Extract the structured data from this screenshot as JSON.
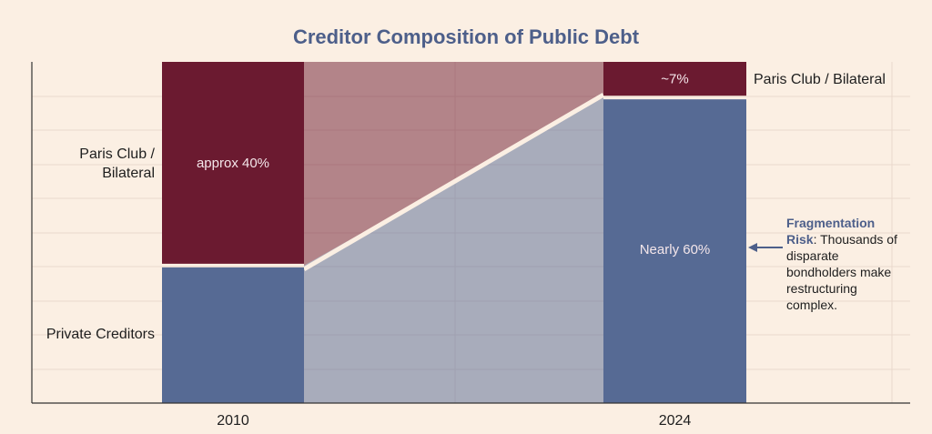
{
  "chart_data": {
    "type": "stacked-bar",
    "title": "Creditor Composition of Public Debt",
    "categories": [
      "2010",
      "2024"
    ],
    "stacking": "percent",
    "series": [
      {
        "name": "Private Creditors",
        "color": "#566a94",
        "values": [
          27,
          60
        ],
        "value_labels": [
          null,
          "Nearly 60%"
        ]
      },
      {
        "name": "Paris Club / Bilateral",
        "color": "#6b1a30",
        "values": [
          40,
          7
        ],
        "value_labels": [
          "approx 40%",
          "~7%"
        ]
      }
    ],
    "annotation": {
      "title": "Fragmentation Risk",
      "text": ": Thousands of disparate bondholders make restructuring complex."
    }
  }
}
